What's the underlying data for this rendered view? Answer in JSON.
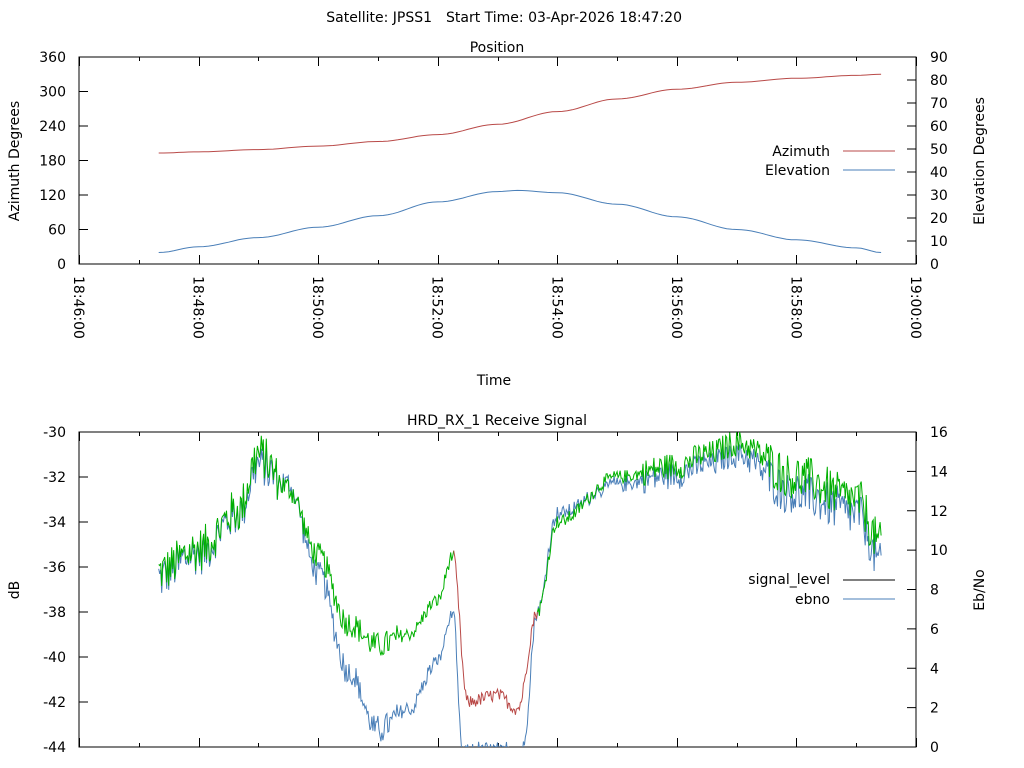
{
  "header": {
    "satellite_label": "Satellite: JPSS1",
    "start_time_label": "Start Time: 03-Apr-2026 18:47:20"
  },
  "chart_data": [
    {
      "type": "line",
      "title": "Position",
      "xlabel": "Time",
      "ylabel": "Azimuth Degrees",
      "y2label": "Elevation Degrees",
      "xlim": [
        "18:46:00",
        "19:00:00"
      ],
      "ylim": [
        0,
        360
      ],
      "y2lim": [
        0,
        90
      ],
      "x_ticks": [
        "18:46:00",
        "18:48:00",
        "18:50:00",
        "18:52:00",
        "18:54:00",
        "18:56:00",
        "18:58:00",
        "19:00:00"
      ],
      "y_ticks": [
        "0",
        "60",
        "120",
        "180",
        "240",
        "300",
        "360"
      ],
      "y2_ticks": [
        "0",
        "10",
        "20",
        "30",
        "40",
        "50",
        "60",
        "70",
        "80",
        "90"
      ],
      "grid": false,
      "legend_position": "right",
      "colors": {
        "azimuth": "#b94a48",
        "elevation": "#4a7fb8"
      },
      "series": [
        {
          "name": "Azimuth",
          "axis": "left",
          "x": [
            "18:47:20",
            "18:48:00",
            "18:49:00",
            "18:50:00",
            "18:51:00",
            "18:52:00",
            "18:53:00",
            "18:54:00",
            "18:55:00",
            "18:56:00",
            "18:57:00",
            "18:58:00",
            "18:59:00",
            "18:59:25"
          ],
          "values": [
            193,
            195,
            199,
            205,
            213,
            225,
            243,
            265,
            287,
            304,
            316,
            323,
            328,
            330
          ]
        },
        {
          "name": "Elevation",
          "axis": "right",
          "x": [
            "18:47:20",
            "18:48:00",
            "18:49:00",
            "18:50:00",
            "18:51:00",
            "18:52:00",
            "18:53:00",
            "18:53:20",
            "18:54:00",
            "18:55:00",
            "18:56:00",
            "18:57:00",
            "18:58:00",
            "18:59:00",
            "18:59:25"
          ],
          "values": [
            5,
            7.5,
            11.5,
            16,
            21,
            27,
            31.5,
            32,
            31,
            26,
            20.5,
            15,
            10.5,
            7,
            5
          ]
        }
      ]
    },
    {
      "type": "line",
      "title": "HRD_RX_1 Receive Signal",
      "xlabel": "",
      "ylabel": "dB",
      "y2label": "Eb/No",
      "xlim": [
        "18:46:00",
        "19:00:00"
      ],
      "ylim": [
        -44,
        -30
      ],
      "y2lim": [
        0,
        16
      ],
      "y_ticks": [
        "-44",
        "-42",
        "-40",
        "-38",
        "-36",
        "-34",
        "-32",
        "-30"
      ],
      "y2_ticks": [
        "0",
        "2",
        "4",
        "6",
        "8",
        "10",
        "12",
        "14",
        "16"
      ],
      "grid": false,
      "legend_position": "right",
      "colors": {
        "signal_level_good": "#00b000",
        "signal_level_low": "#b94a48",
        "signal_level_legend": "#000000",
        "ebno": "#4a7fb8"
      },
      "series": [
        {
          "name": "signal_level",
          "axis": "left",
          "x": [
            "18:47:20",
            "18:48:00",
            "18:48:40",
            "18:49:00",
            "18:49:30",
            "18:50:00",
            "18:50:30",
            "18:51:00",
            "18:51:30",
            "18:52:00",
            "18:52:15",
            "18:52:30",
            "18:53:00",
            "18:53:20",
            "18:53:40",
            "18:54:00",
            "18:55:00",
            "18:56:00",
            "18:56:30",
            "18:57:00",
            "18:58:00",
            "18:59:00",
            "18:59:25"
          ],
          "values": [
            -36.2,
            -35.2,
            -33.5,
            -31.0,
            -32.5,
            -35.5,
            -38.5,
            -39.5,
            -39.0,
            -37.5,
            -35.5,
            -42.0,
            -41.7,
            -42.3,
            -38.0,
            -34.0,
            -32.0,
            -31.5,
            -31.0,
            -30.5,
            -32.0,
            -33.0,
            -35.0
          ]
        },
        {
          "name": "ebno",
          "axis": "right",
          "x": [
            "18:47:20",
            "18:48:00",
            "18:48:40",
            "18:49:00",
            "18:49:30",
            "18:50:00",
            "18:50:30",
            "18:51:00",
            "18:51:30",
            "18:52:00",
            "18:52:15",
            "18:52:25",
            "18:53:25",
            "18:53:40",
            "18:54:00",
            "18:55:00",
            "18:56:00",
            "18:56:30",
            "18:57:00",
            "18:58:00",
            "18:59:00",
            "18:59:25"
          ],
          "values": [
            8.8,
            10.0,
            12.0,
            14.5,
            13.5,
            9.0,
            4.0,
            1.0,
            2.0,
            4.5,
            7.0,
            0,
            0,
            7.0,
            12.0,
            13.5,
            14.0,
            14.5,
            15.0,
            13.0,
            12.0,
            9.5
          ]
        }
      ]
    }
  ]
}
